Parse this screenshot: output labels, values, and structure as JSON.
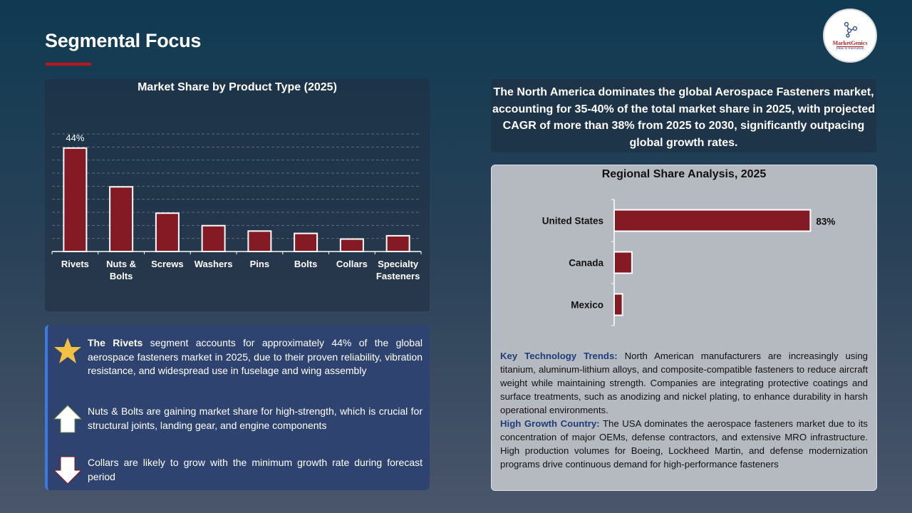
{
  "header": {
    "title": "Segmental Focus",
    "logo_text": "MarketGenics",
    "logo_tagline": "Ideas to Innovation",
    "accent": "#c0141c"
  },
  "chart_data": [
    {
      "type": "bar",
      "title": "Market Share by Product Type (2025)",
      "categories": [
        "Rivets",
        "Nuts & Bolts",
        "Screws",
        "Washers",
        "Pins",
        "Bolts",
        "Collars",
        "Specialty Fasteners"
      ],
      "values": [
        44,
        27.5,
        16.3,
        11,
        8.7,
        7.7,
        5.3,
        6.7
      ],
      "data_labels": [
        "44%",
        "",
        "",
        "",
        "",
        "",
        "",
        ""
      ],
      "unit": "%",
      "ylim": [
        0,
        50
      ],
      "grid": true,
      "bar_color": "#841a24"
    },
    {
      "type": "bar",
      "orientation": "horizontal",
      "title": "Regional Share Analysis, 2025",
      "categories": [
        "United States",
        "Canada",
        "Mexico"
      ],
      "values": [
        83,
        7.5,
        3.5
      ],
      "data_labels": [
        "83%",
        "",
        ""
      ],
      "unit": "%",
      "xlim": [
        0,
        85
      ],
      "grid": false,
      "bar_color": "#841a24"
    }
  ],
  "insights": [
    {
      "icon": "star-icon",
      "bold": "The Rivets",
      "text": " segment accounts for approximately 44% of the global aerospace fasteners market in 2025, due to their proven reliability, vibration resistance, and widespread use in fuselage and wing assembly"
    },
    {
      "icon": "arrow-up-icon",
      "bold": "",
      "text": "Nuts & Bolts are gaining market share for high-strength, which is crucial for structural joints, landing gear, and engine components"
    },
    {
      "icon": "arrow-down-icon",
      "bold": "",
      "text": "Collars are likely to grow with the minimum growth rate during forecast period"
    }
  ],
  "summary": "The North America dominates the global Aerospace Fasteners market, accounting for 35-40% of the total market share in 2025, with projected CAGR of more than 38% from 2025 to 2030, significantly outpacing global growth rates.",
  "trends": [
    {
      "label": "Key Technology Trends:",
      "text": " North American manufacturers are increasingly using titanium, aluminum-lithium alloys, and composite-compatible fasteners to reduce aircraft weight while maintaining strength. Companies are integrating protective coatings and surface treatments, such as anodizing and nickel plating, to enhance durability in harsh operational environments."
    },
    {
      "label": "High Growth Country:",
      "text": " The USA dominates the aerospace fasteners market due to its concentration of major OEMs, defense contractors, and extensive MRO infrastructure. High production volumes for Boeing, Lockheed Martin, and defense modernization programs drive continuous demand for high-performance fasteners"
    }
  ]
}
